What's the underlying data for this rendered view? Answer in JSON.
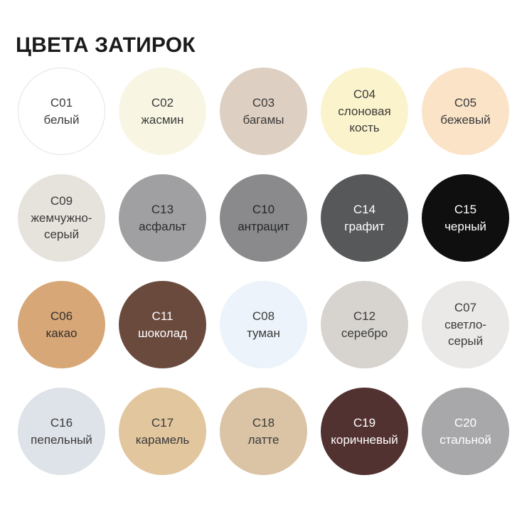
{
  "page": {
    "title": "ЦВЕТА ЗАТИРОК",
    "background": "#ffffff"
  },
  "grid": {
    "items": [
      {
        "code": "C01",
        "name": "белый",
        "color": "#ffffff",
        "text_color": "#3b3b3b",
        "border_color": "#e3e3e3"
      },
      {
        "code": "C02",
        "name": "жасмин",
        "color": "#f8f6e3",
        "text_color": "#3b3b3b"
      },
      {
        "code": "C03",
        "name": "багамы",
        "color": "#ddcfc1",
        "text_color": "#3b3b3b"
      },
      {
        "code": "C04",
        "name": "слоновая кость",
        "color": "#fbf3cc",
        "text_color": "#3b3b3b"
      },
      {
        "code": "C05",
        "name": "бежевый",
        "color": "#fbe3c8",
        "text_color": "#3b3b3b"
      },
      {
        "code": "C09",
        "name": "жемчужно-серый",
        "color": "#e6e2dc",
        "text_color": "#3b3b3b"
      },
      {
        "code": "C13",
        "name": "асфальт",
        "color": "#a0a0a2",
        "text_color": "#2d2d2f"
      },
      {
        "code": "C10",
        "name": "антрацит",
        "color": "#8a8a8c",
        "text_color": "#252628"
      },
      {
        "code": "C14",
        "name": "графит",
        "color": "#57585a",
        "text_color": "#ffffff"
      },
      {
        "code": "C15",
        "name": "черный",
        "color": "#0f0f0f",
        "text_color": "#ffffff"
      },
      {
        "code": "C06",
        "name": "какао",
        "color": "#d7a777",
        "text_color": "#332f2a"
      },
      {
        "code": "C11",
        "name": "шоколад",
        "color": "#6b4a3e",
        "text_color": "#ffffff"
      },
      {
        "code": "C08",
        "name": "туман",
        "color": "#ecf3fa",
        "text_color": "#3b3b3b"
      },
      {
        "code": "C12",
        "name": "серебро",
        "color": "#d7d4cf",
        "text_color": "#3b3b3b"
      },
      {
        "code": "C07",
        "name": "светло-серый",
        "color": "#eae9e7",
        "text_color": "#3b3b3b"
      },
      {
        "code": "C16",
        "name": "пепельный",
        "color": "#dee2e9",
        "text_color": "#3b3b3b"
      },
      {
        "code": "C17",
        "name": "карамель",
        "color": "#e2c69e",
        "text_color": "#3b3b3b"
      },
      {
        "code": "C18",
        "name": "латте",
        "color": "#dbc3a5",
        "text_color": "#3b3b3b"
      },
      {
        "code": "C19",
        "name": "коричневый",
        "color": "#523231",
        "text_color": "#ffffff"
      },
      {
        "code": "C20",
        "name": "стальной",
        "color": "#a8a8aa",
        "text_color": "#ffffff"
      }
    ]
  }
}
